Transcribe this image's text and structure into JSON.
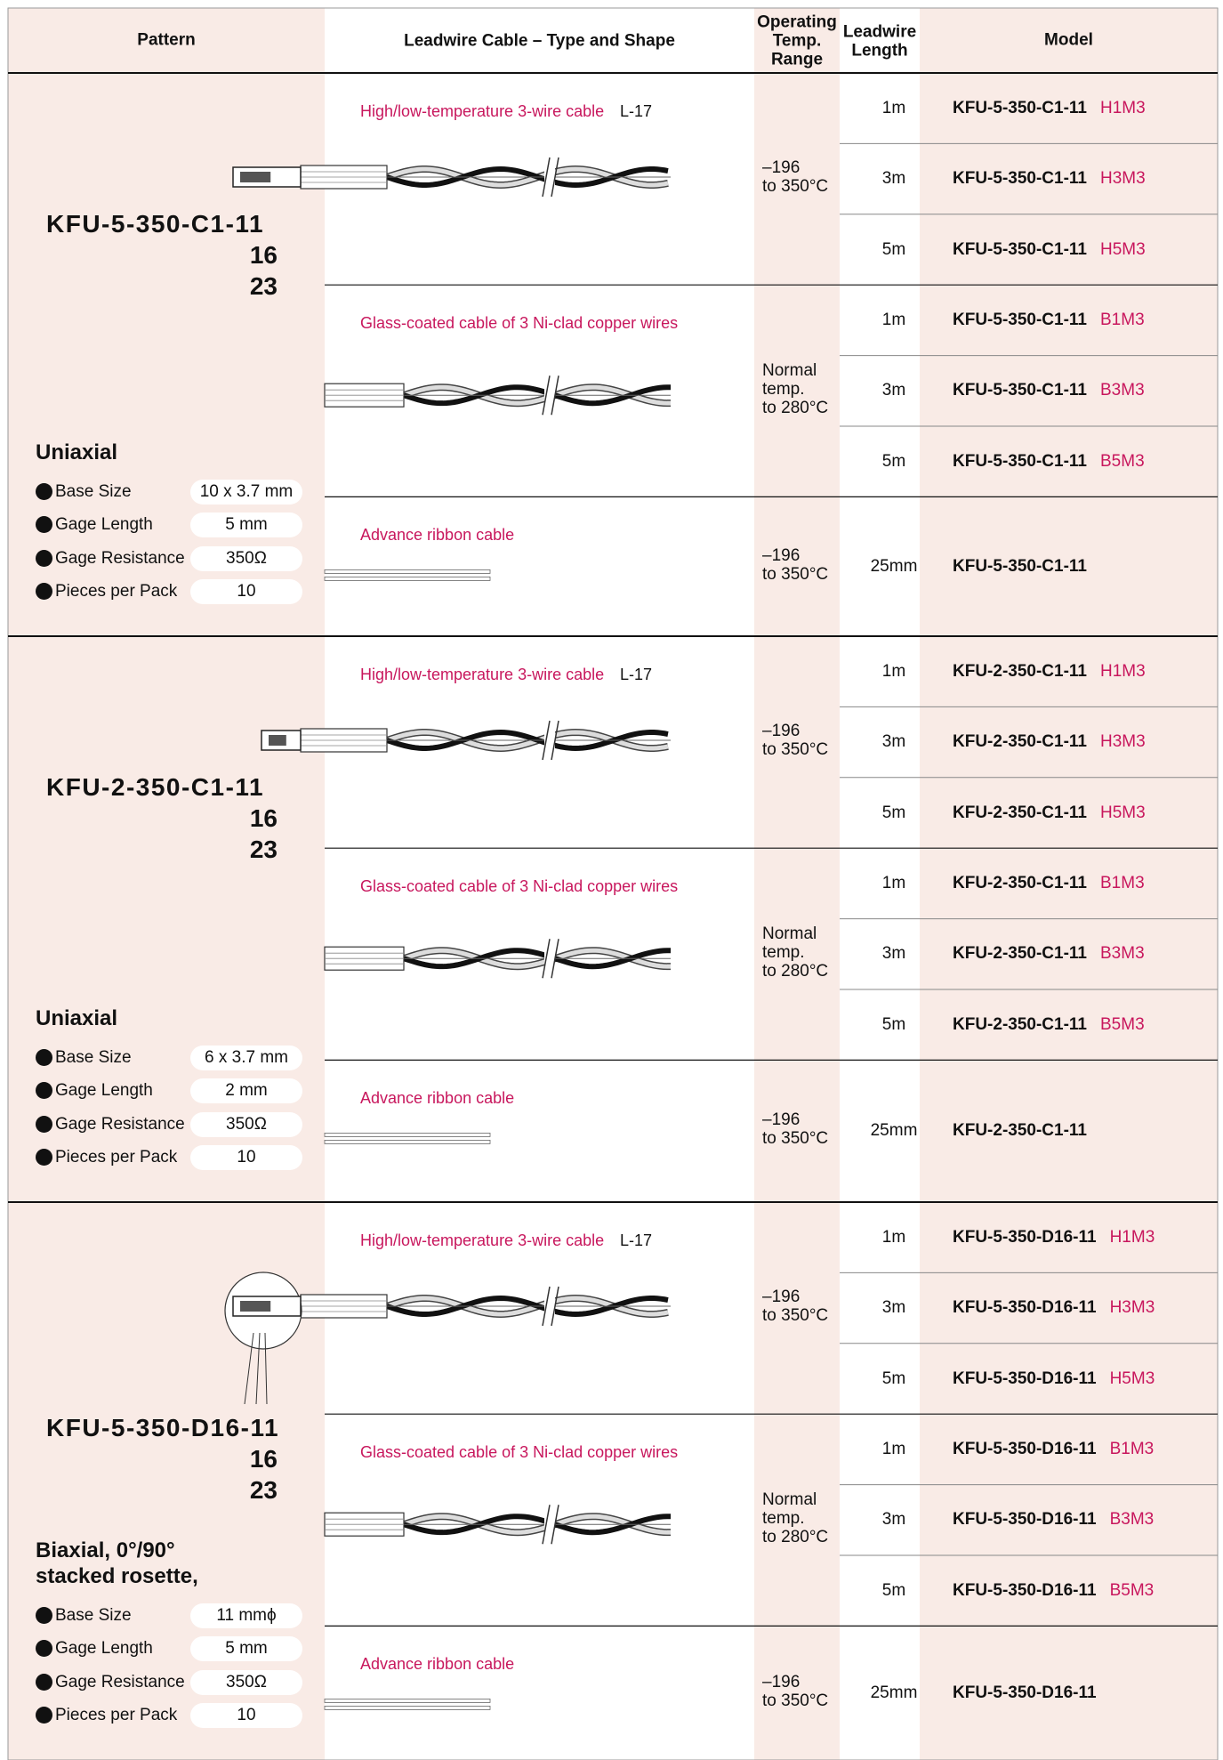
{
  "header": {
    "pattern": "Pattern",
    "cable": "Leadwire Cable – Type and Shape",
    "temp": [
      "Operating",
      "Temp.",
      "Range"
    ],
    "length": [
      "Leadwire",
      "Length"
    ],
    "model": "Model"
  },
  "groups": [
    {
      "model": "KFU-5-350-C1-11",
      "suffixes": [
        "16",
        "23"
      ],
      "type": [
        "Uniaxial"
      ],
      "specs": [
        {
          "label": "Base Size",
          "value": "10 x 3.7 mm"
        },
        {
          "label": "Gage Length",
          "value": "5 mm"
        },
        {
          "label": "Gage Resistance",
          "value": "350Ω"
        },
        {
          "label": "Pieces per Pack",
          "value": "10"
        }
      ],
      "cables": [
        {
          "name": "High/low-temperature 3-wire cable",
          "code": "L-17",
          "temp": [
            "–196",
            "to 350°C"
          ],
          "rows": [
            {
              "length": "1m",
              "model": "KFU-5-350-C1-11",
              "suffix": "H1M3"
            },
            {
              "length": "3m",
              "model": "KFU-5-350-C1-11",
              "suffix": "H3M3"
            },
            {
              "length": "5m",
              "model": "KFU-5-350-C1-11",
              "suffix": "H5M3"
            }
          ]
        },
        {
          "name": "Glass-coated cable of 3 Ni-clad copper wires",
          "temp": [
            "Normal",
            "temp.",
            "to 280°C"
          ],
          "rows": [
            {
              "length": "1m",
              "model": "KFU-5-350-C1-11",
              "suffix": "B1M3"
            },
            {
              "length": "3m",
              "model": "KFU-5-350-C1-11",
              "suffix": "B3M3"
            },
            {
              "length": "5m",
              "model": "KFU-5-350-C1-11",
              "suffix": "B5M3"
            }
          ]
        },
        {
          "name": "Advance ribbon cable",
          "temp": [
            "–196",
            "to 350°C"
          ],
          "rows": [
            {
              "length": "25mm",
              "model": "KFU-5-350-C1-11"
            }
          ]
        }
      ]
    },
    {
      "model": "KFU-2-350-C1-11",
      "suffixes": [
        "16",
        "23"
      ],
      "type": [
        "Uniaxial"
      ],
      "specs": [
        {
          "label": "Base Size",
          "value": "6 x 3.7 mm"
        },
        {
          "label": "Gage Length",
          "value": "2 mm"
        },
        {
          "label": "Gage Resistance",
          "value": "350Ω"
        },
        {
          "label": "Pieces per Pack",
          "value": "10"
        }
      ],
      "cables": [
        {
          "name": "High/low-temperature 3-wire cable",
          "code": "L-17",
          "temp": [
            "–196",
            "to 350°C"
          ],
          "rows": [
            {
              "length": "1m",
              "model": "KFU-2-350-C1-11",
              "suffix": "H1M3"
            },
            {
              "length": "3m",
              "model": "KFU-2-350-C1-11",
              "suffix": "H3M3"
            },
            {
              "length": "5m",
              "model": "KFU-2-350-C1-11",
              "suffix": "H5M3"
            }
          ]
        },
        {
          "name": "Glass-coated cable of 3 Ni-clad copper wires",
          "temp": [
            "Normal",
            "temp.",
            "to 280°C"
          ],
          "rows": [
            {
              "length": "1m",
              "model": "KFU-2-350-C1-11",
              "suffix": "B1M3"
            },
            {
              "length": "3m",
              "model": "KFU-2-350-C1-11",
              "suffix": "B3M3"
            },
            {
              "length": "5m",
              "model": "KFU-2-350-C1-11",
              "suffix": "B5M3"
            }
          ]
        },
        {
          "name": "Advance ribbon cable",
          "temp": [
            "–196",
            "to 350°C"
          ],
          "rows": [
            {
              "length": "25mm",
              "model": "KFU-2-350-C1-11"
            }
          ]
        }
      ]
    },
    {
      "model": "KFU-5-350-D16-11",
      "suffixes": [
        "16",
        "23"
      ],
      "type": [
        "Biaxial, 0°/90°",
        "stacked rosette,"
      ],
      "specs": [
        {
          "label": "Base Size",
          "value": "11 mmϕ"
        },
        {
          "label": "Gage Length",
          "value": "5 mm"
        },
        {
          "label": "Gage Resistance",
          "value": "350Ω"
        },
        {
          "label": "Pieces per Pack",
          "value": "10"
        }
      ],
      "cables": [
        {
          "name": "High/low-temperature 3-wire cable",
          "code": "L-17",
          "temp": [
            "–196",
            "to 350°C"
          ],
          "rows": [
            {
              "length": "1m",
              "model": "KFU-5-350-D16-11",
              "suffix": "H1M3"
            },
            {
              "length": "3m",
              "model": "KFU-5-350-D16-11",
              "suffix": "H3M3"
            },
            {
              "length": "5m",
              "model": "KFU-5-350-D16-11",
              "suffix": "H5M3"
            }
          ]
        },
        {
          "name": "Glass-coated cable of 3 Ni-clad copper wires",
          "temp": [
            "Normal",
            "temp.",
            "to 280°C"
          ],
          "rows": [
            {
              "length": "1m",
              "model": "KFU-5-350-D16-11",
              "suffix": "B1M3"
            },
            {
              "length": "3m",
              "model": "KFU-5-350-D16-11",
              "suffix": "B3M3"
            },
            {
              "length": "5m",
              "model": "KFU-5-350-D16-11",
              "suffix": "B5M3"
            }
          ]
        },
        {
          "name": "Advance ribbon cable",
          "temp": [
            "–196",
            "to 350°C"
          ],
          "rows": [
            {
              "length": "25mm",
              "model": "KFU-5-350-D16-11"
            }
          ]
        }
      ]
    }
  ]
}
